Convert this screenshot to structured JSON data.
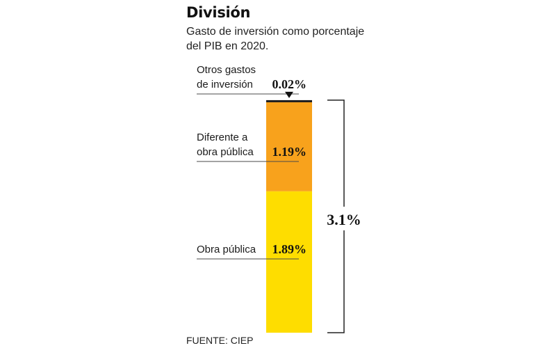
{
  "header": {
    "title": "División",
    "subtitle": "Gasto de inversión como porcentaje del PIB en 2020."
  },
  "footer": {
    "source": "FUENTE: CIEP"
  },
  "colors": {
    "obra_publica": "#fedd00",
    "diferente": "#f8a21c",
    "otros": "#1a1a1a"
  },
  "chart_data": {
    "type": "bar",
    "stacked": true,
    "title": "División",
    "subtitle": "Gasto de inversión como porcentaje del PIB en 2020.",
    "xlabel": "",
    "ylabel": "",
    "unit": "%",
    "series": [
      {
        "name_lines": [
          "Obra pública"
        ],
        "value": 1.89,
        "label": "1.89%",
        "color": "#fedd00"
      },
      {
        "name_lines": [
          "Diferente a",
          "obra pública"
        ],
        "value": 1.19,
        "label": "1.19%",
        "color": "#f8a21c"
      },
      {
        "name_lines": [
          "Otros gastos",
          "de inversión"
        ],
        "value": 0.02,
        "label": "0.02%",
        "color": "#1a1a1a"
      }
    ],
    "total": {
      "value": 3.1,
      "label": "3.1%"
    }
  }
}
